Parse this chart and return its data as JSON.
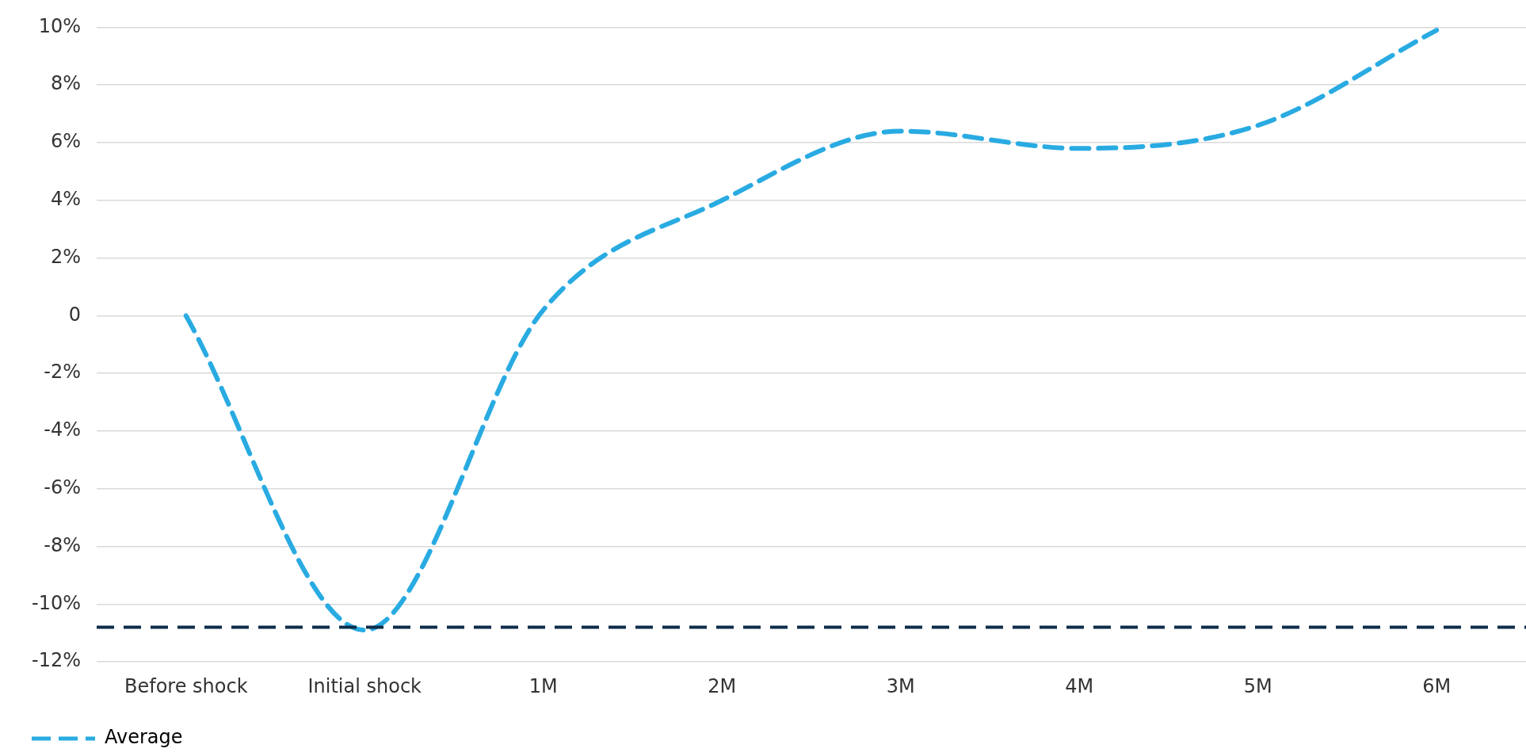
{
  "chart_data": {
    "type": "line",
    "categories": [
      "Before shock",
      "Initial shock",
      "1M",
      "2M",
      "3M",
      "4M",
      "5M",
      "6M"
    ],
    "series": [
      {
        "name": "Average",
        "color": "#29abe2",
        "values": [
          0,
          -10.9,
          0.2,
          4,
          6.4,
          5.8,
          6.6,
          9.9
        ]
      }
    ],
    "ylim": [
      -12,
      10
    ],
    "yticks": [
      {
        "value": -12,
        "label": "-12%"
      },
      {
        "value": -10,
        "label": "-10%"
      },
      {
        "value": -8,
        "label": "-8%"
      },
      {
        "value": -6,
        "label": "-6%"
      },
      {
        "value": -4,
        "label": "-4%"
      },
      {
        "value": -2,
        "label": "-2%"
      },
      {
        "value": 0,
        "label": "0"
      },
      {
        "value": 2,
        "label": "2%"
      },
      {
        "value": 4,
        "label": "4%"
      },
      {
        "value": 6,
        "label": "6%"
      },
      {
        "value": 8,
        "label": "8%"
      },
      {
        "value": 10,
        "label": "10%"
      }
    ],
    "ref_lines": [
      {
        "axis": "y",
        "value": -10.8,
        "color": "#0d2d4a",
        "line_style": "dashed"
      }
    ],
    "grid": "y",
    "legend": "bottom left",
    "line_style": "dashed",
    "marker": "none"
  }
}
